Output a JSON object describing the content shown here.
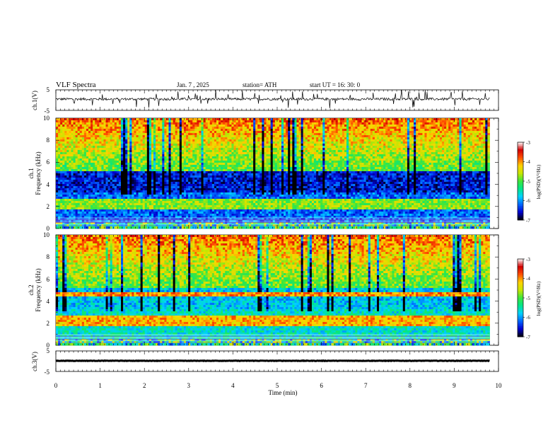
{
  "header": {
    "title": "VLF  Spectra",
    "date": "Jan.  7  , 2025",
    "station": "station= ATH",
    "start": "start  UT  =    16: 30: 0"
  },
  "chart_data": [
    {
      "id": "ch1-waveform",
      "type": "line",
      "ylabel": "ch.1(V)",
      "ylim": [
        -5,
        5
      ],
      "yticks": [
        "5",
        "-5"
      ],
      "xlim": [
        0,
        10
      ],
      "series": [
        {
          "baseline": 0.5,
          "spread": 0.6
        }
      ]
    },
    {
      "id": "ch1-spectrogram",
      "type": "heatmap",
      "ylabel_line1": "ch.1",
      "ylabel_line2": "Frequency  (kHz)",
      "ylim": [
        0,
        10
      ],
      "yticks": [
        "0",
        "2",
        "4",
        "6",
        "8",
        "10"
      ],
      "xlim": [
        0,
        9.8
      ],
      "colorbar": {
        "label": "log(PSD)(V²/Hz)",
        "range": [
          -7,
          -3
        ],
        "ticks": [
          "-3",
          "-4",
          "-5",
          "-6",
          "-7"
        ]
      }
    },
    {
      "id": "ch2-spectrogram",
      "type": "heatmap",
      "ylabel_line1": "ch.2",
      "ylabel_line2": "Frequency  (kHz)",
      "ylim": [
        0,
        10
      ],
      "yticks": [
        "0",
        "2",
        "4",
        "6",
        "8",
        "10"
      ],
      "xlim": [
        0,
        9.8
      ],
      "colorbar": {
        "label": "log(PSD)(V²/Hz)",
        "range": [
          -7,
          -3
        ],
        "ticks": [
          "-3",
          "-4",
          "-5",
          "-6",
          "-7"
        ]
      }
    },
    {
      "id": "ch3-waveform",
      "type": "line",
      "ylabel": "ch.3(V)",
      "ylim": [
        -5,
        5
      ],
      "yticks": [
        "5",
        "-5"
      ],
      "xlim": [
        0,
        10
      ],
      "series": [
        {
          "baseline": 0.2,
          "spread": 0.1
        }
      ]
    }
  ],
  "xaxis": {
    "label": "Time  (min)",
    "ticks": [
      "0",
      "1",
      "2",
      "3",
      "4",
      "5",
      "6",
      "7",
      "8",
      "9",
      "10"
    ],
    "range": [
      0,
      10
    ]
  },
  "colors": {
    "colormap": [
      "#000000",
      "#0000d0",
      "#0066ff",
      "#00d2ff",
      "#00e68a",
      "#3ce63c",
      "#c8e600",
      "#ffd200",
      "#ff5000",
      "#d20000",
      "#ffffff"
    ]
  }
}
